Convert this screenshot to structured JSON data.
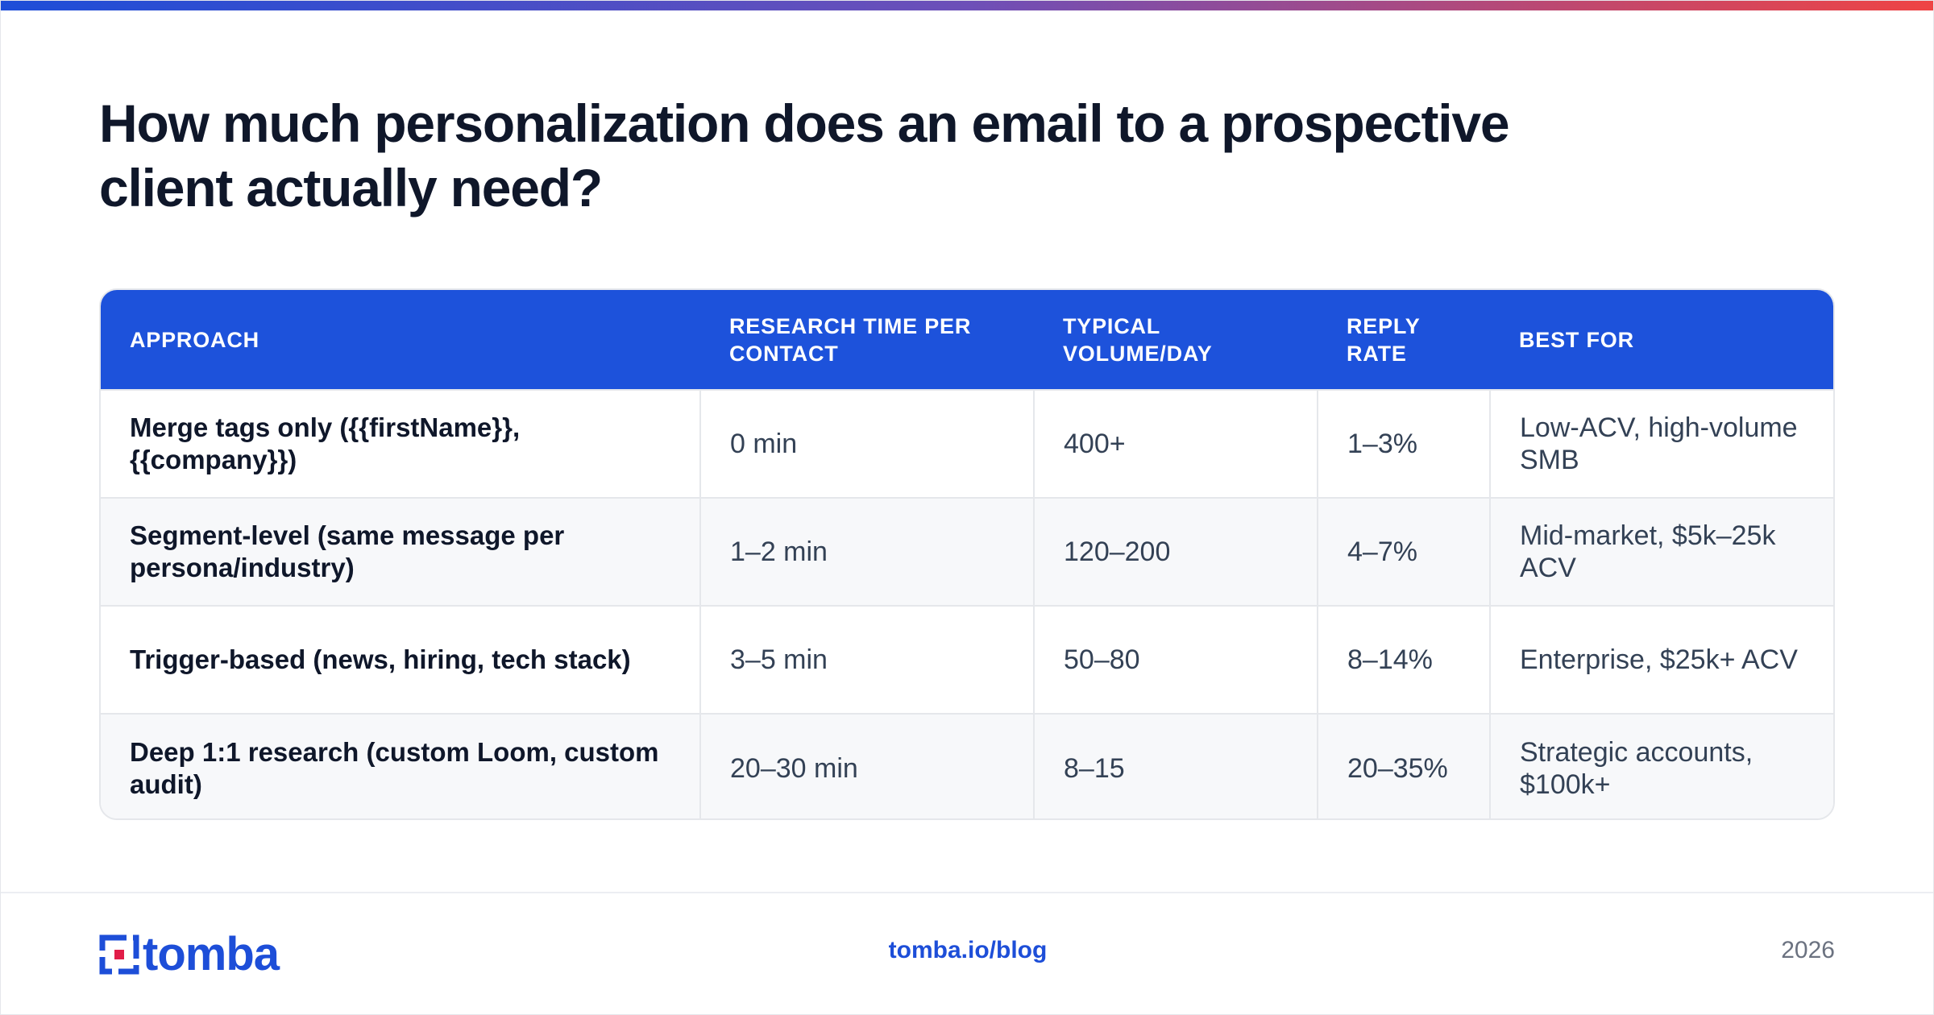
{
  "title": "How much personalization does an email to a prospective client actually need?",
  "table": {
    "headers": [
      "APPROACH",
      "RESEARCH TIME PER CONTACT",
      "TYPICAL VOLUME/DAY",
      "REPLY RATE",
      "BEST FOR"
    ],
    "rows": [
      [
        "Merge tags only ({{firstName}}, {{company}})",
        "0 min",
        "400+",
        "1–3%",
        "Low-ACV, high-volume SMB"
      ],
      [
        "Segment-level (same message per persona/industry)",
        "1–2 min",
        "120–200",
        "4–7%",
        "Mid-market, $5k–25k ACV"
      ],
      [
        "Trigger-based (news, hiring, tech stack)",
        "3–5 min",
        "50–80",
        "8–14%",
        "Enterprise, $25k+ ACV"
      ],
      [
        "Deep 1:1 research (custom Loom, custom audit)",
        "20–30 min",
        "8–15",
        "20–35%",
        "Strategic accounts, $100k+"
      ]
    ]
  },
  "footer": {
    "logo_text": "tomba",
    "link": "tomba.io/blog",
    "year": "2026"
  },
  "colors": {
    "accent": "#1d52db",
    "logo_red": "#e11d48",
    "gradient_start": "#1d4ed8",
    "gradient_end": "#ef4444"
  },
  "icons": {
    "logo": "tomba-logo-mark-icon"
  }
}
